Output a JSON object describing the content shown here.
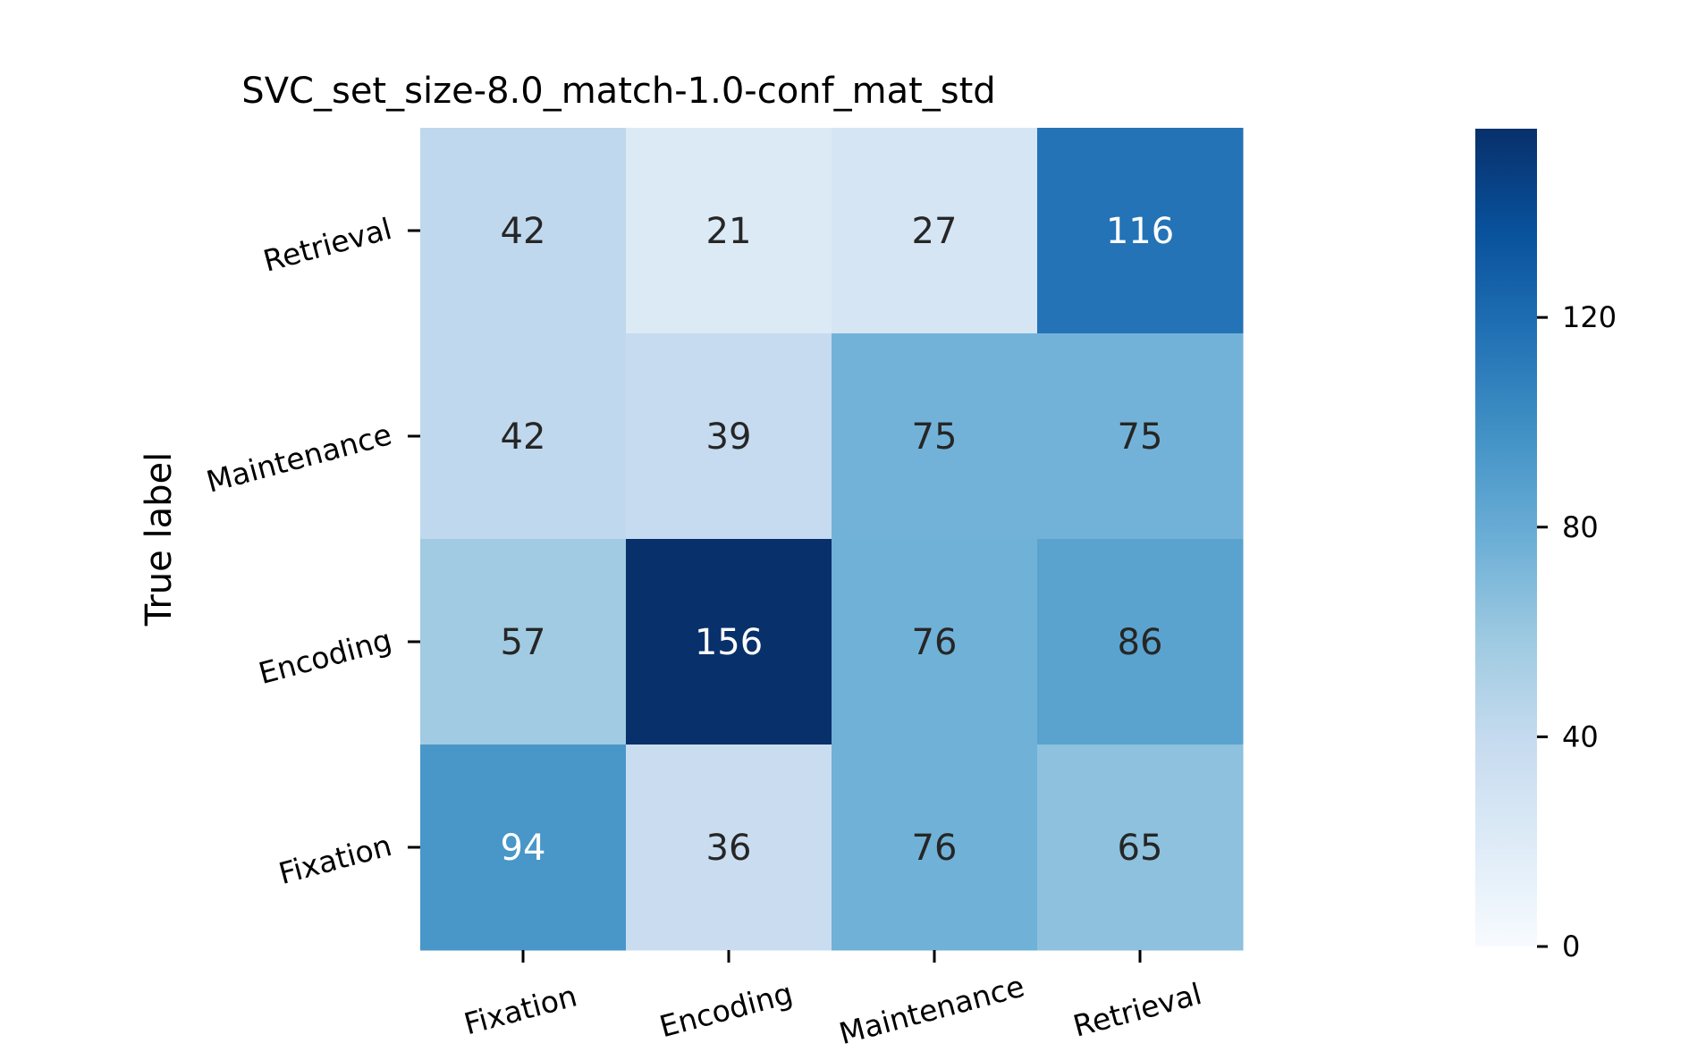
{
  "chart_data": {
    "type": "heatmap",
    "title": "SVC_set_size-8.0_match-1.0-conf_mat_std",
    "ylabel": "True label",
    "xlabel": "",
    "x_categories": [
      "Fixation",
      "Encoding",
      "Maintenance",
      "Retrieval"
    ],
    "y_categories": [
      "Retrieval",
      "Maintenance",
      "Encoding",
      "Fixation"
    ],
    "values": [
      [
        42,
        21,
        27,
        116
      ],
      [
        42,
        39,
        75,
        75
      ],
      [
        57,
        156,
        76,
        86
      ],
      [
        94,
        36,
        76,
        65
      ]
    ],
    "colormap": "Blues",
    "colorbar": {
      "range": [
        0,
        156
      ],
      "ticks": [
        0,
        40,
        80,
        120
      ],
      "tick_labels": [
        "0",
        "40",
        "80",
        "120"
      ]
    },
    "colors": {
      "low": "#f7fbff",
      "high": "#08306b",
      "text_dark": "#262626",
      "text_light": "#ffffff"
    }
  }
}
